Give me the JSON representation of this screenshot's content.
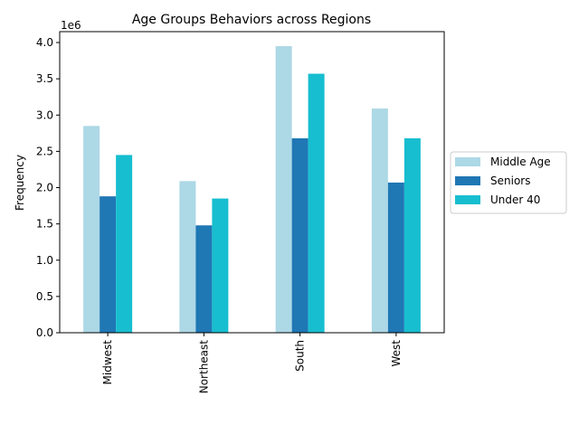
{
  "chart_data": {
    "type": "bar",
    "title": "Age Groups Behaviors across Regions",
    "xlabel": "",
    "ylabel": "Frequency",
    "offset_label": "1e6",
    "categories": [
      "Midwest",
      "Northeast",
      "South",
      "West"
    ],
    "series": [
      {
        "name": "Middle Age",
        "color": "#add8e6",
        "values": [
          2850000,
          2090000,
          3950000,
          3090000
        ]
      },
      {
        "name": "Seniors",
        "color": "#1f77b4",
        "values": [
          1880000,
          1480000,
          2680000,
          2070000
        ]
      },
      {
        "name": "Under 40",
        "color": "#17becf",
        "values": [
          2450000,
          1850000,
          3570000,
          2680000
        ]
      }
    ],
    "ylim": [
      0,
      4150000
    ],
    "yticks": [
      "0.0",
      "0.5",
      "1.0",
      "1.5",
      "2.0",
      "2.5",
      "3.0",
      "3.5",
      "4.0"
    ],
    "grid": false,
    "legend_position": "center-right"
  }
}
